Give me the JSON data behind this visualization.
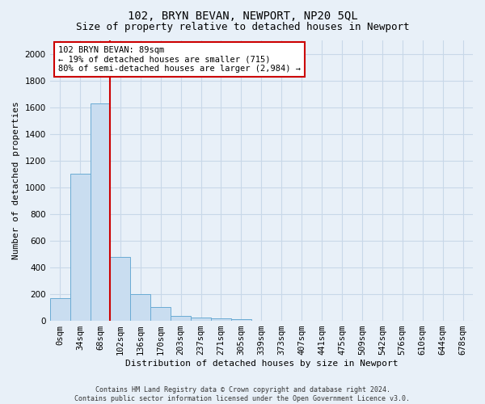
{
  "title": "102, BRYN BEVAN, NEWPORT, NP20 5QL",
  "subtitle": "Size of property relative to detached houses in Newport",
  "xlabel": "Distribution of detached houses by size in Newport",
  "ylabel": "Number of detached properties",
  "footer_line1": "Contains HM Land Registry data © Crown copyright and database right 2024.",
  "footer_line2": "Contains public sector information licensed under the Open Government Licence v3.0.",
  "categories": [
    "0sqm",
    "34sqm",
    "68sqm",
    "102sqm",
    "136sqm",
    "170sqm",
    "203sqm",
    "237sqm",
    "271sqm",
    "305sqm",
    "339sqm",
    "373sqm",
    "407sqm",
    "441sqm",
    "475sqm",
    "509sqm",
    "542sqm",
    "576sqm",
    "610sqm",
    "644sqm",
    "678sqm"
  ],
  "values": [
    170,
    1100,
    1630,
    480,
    200,
    105,
    38,
    22,
    18,
    15,
    0,
    0,
    0,
    0,
    0,
    0,
    0,
    0,
    0,
    0,
    0
  ],
  "bar_color": "#c9ddf0",
  "bar_edge_color": "#6aabd4",
  "vline_x_index": 2.5,
  "vline_color": "#cc0000",
  "annotation_text": "102 BRYN BEVAN: 89sqm\n← 19% of detached houses are smaller (715)\n80% of semi-detached houses are larger (2,984) →",
  "annotation_box_color": "#cc0000",
  "ylim": [
    0,
    2100
  ],
  "yticks": [
    0,
    200,
    400,
    600,
    800,
    1000,
    1200,
    1400,
    1600,
    1800,
    2000
  ],
  "bg_color": "#e8f0f8",
  "grid_color": "#c8d8e8",
  "title_fontsize": 10,
  "subtitle_fontsize": 9,
  "axis_label_fontsize": 8,
  "tick_fontsize": 7.5,
  "annotation_fontsize": 7.5,
  "footer_fontsize": 6
}
